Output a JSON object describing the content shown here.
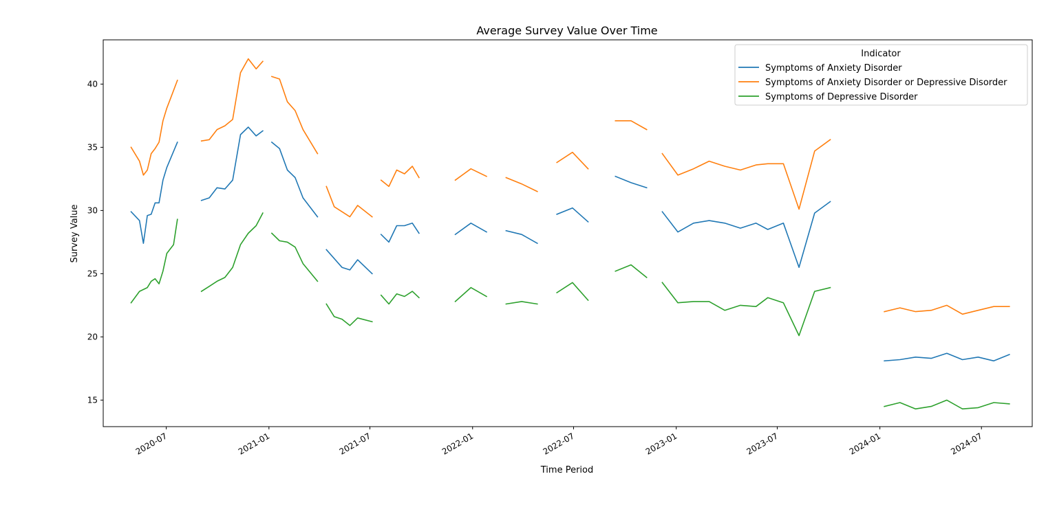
{
  "chart_data": {
    "type": "line",
    "title": "Average Survey Value Over Time",
    "xlabel": "Time Period",
    "ylabel": "Survey Value",
    "ylim": [
      12.9,
      43.5
    ],
    "xlim": [
      "2020-03-10",
      "2024-09-30"
    ],
    "y_ticks": [
      15,
      20,
      25,
      30,
      35,
      40
    ],
    "x_ticks": [
      "2020-07",
      "2021-01",
      "2021-07",
      "2022-01",
      "2022-07",
      "2023-01",
      "2023-07",
      "2024-01",
      "2024-07"
    ],
    "grid": false,
    "legend": {
      "title": "Indicator",
      "placement": "top-right"
    },
    "series": [
      {
        "name": "Symptoms of Anxiety Disorder",
        "color": "#1f77b4",
        "segments": [
          {
            "x": [
              "2020-04-29",
              "2020-05-14",
              "2020-05-21",
              "2020-05-28",
              "2020-06-04",
              "2020-06-11",
              "2020-06-18",
              "2020-06-25",
              "2020-07-02",
              "2020-07-21"
            ],
            "y": [
              29.9,
              29.2,
              27.4,
              29.6,
              29.7,
              30.6,
              30.6,
              32.4,
              33.4,
              35.4
            ]
          },
          {
            "x": [
              "2020-09-02",
              "2020-09-16",
              "2020-09-30",
              "2020-10-14",
              "2020-10-28",
              "2020-11-11",
              "2020-11-25",
              "2020-12-09",
              "2020-12-21"
            ],
            "y": [
              30.8,
              31.0,
              31.8,
              31.7,
              32.4,
              36.0,
              36.6,
              35.9,
              36.3
            ]
          },
          {
            "x": [
              "2021-01-06",
              "2021-01-20",
              "2021-02-03",
              "2021-02-17",
              "2021-03-03",
              "2021-03-29"
            ],
            "y": [
              35.4,
              34.9,
              33.2,
              32.6,
              31.0,
              29.5
            ]
          },
          {
            "x": [
              "2021-04-14",
              "2021-05-12",
              "2021-05-26",
              "2021-06-09",
              "2021-07-05"
            ],
            "y": [
              26.9,
              25.5,
              25.3,
              26.1,
              25.0
            ]
          },
          {
            "x": [
              "2021-07-21",
              "2021-08-04",
              "2021-08-18",
              "2021-09-01",
              "2021-09-15",
              "2021-09-27"
            ],
            "y": [
              28.1,
              27.5,
              28.8,
              28.8,
              29.0,
              28.2
            ]
          },
          {
            "x": [
              "2021-12-01",
              "2021-12-29",
              "2022-01-26"
            ],
            "y": [
              28.1,
              29.0,
              28.3
            ]
          },
          {
            "x": [
              "2022-03-02",
              "2022-03-30",
              "2022-04-27"
            ],
            "y": [
              28.4,
              28.1,
              27.4
            ]
          },
          {
            "x": [
              "2022-06-01",
              "2022-06-29",
              "2022-07-27"
            ],
            "y": [
              29.7,
              30.2,
              29.1
            ]
          },
          {
            "x": [
              "2022-09-14",
              "2022-10-12",
              "2022-11-09"
            ],
            "y": [
              32.7,
              32.2,
              31.8
            ]
          },
          {
            "x": [
              "2022-12-07",
              "2023-01-04",
              "2023-02-01",
              "2023-03-01",
              "2023-03-29",
              "2023-04-26",
              "2023-05-24",
              "2023-06-14",
              "2023-07-12",
              "2023-08-09",
              "2023-09-06",
              "2023-10-04"
            ],
            "y": [
              29.9,
              28.3,
              29.0,
              29.2,
              29.0,
              28.6,
              29.0,
              28.5,
              29.0,
              25.5,
              29.8,
              30.7
            ]
          },
          {
            "x": [
              "2024-01-09",
              "2024-02-06",
              "2024-03-05",
              "2024-04-02",
              "2024-04-30",
              "2024-05-28",
              "2024-06-25",
              "2024-07-23",
              "2024-08-20"
            ],
            "y": [
              18.1,
              18.2,
              18.4,
              18.3,
              18.7,
              18.2,
              18.4,
              18.1,
              18.6
            ]
          }
        ]
      },
      {
        "name": "Symptoms of Anxiety Disorder or Depressive Disorder",
        "color": "#ff7f0e",
        "segments": [
          {
            "x": [
              "2020-04-29",
              "2020-05-14",
              "2020-05-21",
              "2020-05-28",
              "2020-06-04",
              "2020-06-11",
              "2020-06-18",
              "2020-06-25",
              "2020-07-02",
              "2020-07-09",
              "2020-07-21"
            ],
            "y": [
              35.0,
              33.9,
              32.8,
              33.2,
              34.5,
              34.9,
              35.4,
              37.1,
              38.1,
              38.9,
              40.3
            ]
          },
          {
            "x": [
              "2020-09-02",
              "2020-09-16",
              "2020-09-30",
              "2020-10-14",
              "2020-10-28",
              "2020-11-11",
              "2020-11-25",
              "2020-12-09",
              "2020-12-21"
            ],
            "y": [
              35.5,
              35.6,
              36.4,
              36.7,
              37.2,
              40.9,
              42.0,
              41.2,
              41.8
            ]
          },
          {
            "x": [
              "2021-01-06",
              "2021-01-20",
              "2021-02-03",
              "2021-02-17",
              "2021-03-03",
              "2021-03-29"
            ],
            "y": [
              40.6,
              40.4,
              38.6,
              37.9,
              36.4,
              34.5
            ]
          },
          {
            "x": [
              "2021-04-14",
              "2021-04-28",
              "2021-05-12",
              "2021-05-26",
              "2021-06-09",
              "2021-07-05"
            ],
            "y": [
              31.9,
              30.3,
              29.9,
              29.5,
              30.4,
              29.5
            ]
          },
          {
            "x": [
              "2021-07-21",
              "2021-08-04",
              "2021-08-18",
              "2021-09-01",
              "2021-09-15",
              "2021-09-27"
            ],
            "y": [
              32.4,
              31.9,
              33.2,
              32.9,
              33.5,
              32.6
            ]
          },
          {
            "x": [
              "2021-12-01",
              "2021-12-29",
              "2022-01-26"
            ],
            "y": [
              32.4,
              33.3,
              32.7
            ]
          },
          {
            "x": [
              "2022-03-02",
              "2022-03-30",
              "2022-04-27"
            ],
            "y": [
              32.6,
              32.1,
              31.5
            ]
          },
          {
            "x": [
              "2022-06-01",
              "2022-06-29",
              "2022-07-27"
            ],
            "y": [
              33.8,
              34.6,
              33.3
            ]
          },
          {
            "x": [
              "2022-09-14",
              "2022-10-12",
              "2022-11-09"
            ],
            "y": [
              37.1,
              37.1,
              36.4
            ]
          },
          {
            "x": [
              "2022-12-07",
              "2023-01-04",
              "2023-02-01",
              "2023-03-01",
              "2023-03-29",
              "2023-04-26",
              "2023-05-24",
              "2023-06-14",
              "2023-07-12",
              "2023-08-09",
              "2023-09-06",
              "2023-10-04"
            ],
            "y": [
              34.5,
              32.8,
              33.3,
              33.9,
              33.5,
              33.2,
              33.6,
              33.7,
              33.7,
              30.1,
              34.7,
              35.6
            ]
          },
          {
            "x": [
              "2024-01-09",
              "2024-02-06",
              "2024-03-05",
              "2024-04-02",
              "2024-04-30",
              "2024-05-28",
              "2024-06-25",
              "2024-07-23",
              "2024-08-20"
            ],
            "y": [
              22.0,
              22.3,
              22.0,
              22.1,
              22.5,
              21.8,
              22.1,
              22.4,
              22.4
            ]
          }
        ]
      },
      {
        "name": "Symptoms of Depressive Disorder",
        "color": "#2ca02c",
        "segments": [
          {
            "x": [
              "2020-04-29",
              "2020-05-14",
              "2020-05-28",
              "2020-06-04",
              "2020-06-11",
              "2020-06-18",
              "2020-06-25",
              "2020-07-02",
              "2020-07-14",
              "2020-07-21"
            ],
            "y": [
              22.7,
              23.6,
              23.9,
              24.4,
              24.6,
              24.2,
              25.2,
              26.6,
              27.3,
              29.3
            ]
          },
          {
            "x": [
              "2020-09-02",
              "2020-09-16",
              "2020-09-30",
              "2020-10-14",
              "2020-10-28",
              "2020-11-11",
              "2020-11-25",
              "2020-12-09",
              "2020-12-21"
            ],
            "y": [
              23.6,
              24.0,
              24.4,
              24.7,
              25.5,
              27.3,
              28.2,
              28.8,
              29.8
            ]
          },
          {
            "x": [
              "2021-01-06",
              "2021-01-20",
              "2021-02-03",
              "2021-02-17",
              "2021-03-03",
              "2021-03-29"
            ],
            "y": [
              28.2,
              27.6,
              27.5,
              27.1,
              25.8,
              24.4
            ]
          },
          {
            "x": [
              "2021-04-14",
              "2021-04-28",
              "2021-05-12",
              "2021-05-26",
              "2021-06-09",
              "2021-07-05"
            ],
            "y": [
              22.6,
              21.6,
              21.4,
              20.9,
              21.5,
              21.2
            ]
          },
          {
            "x": [
              "2021-07-21",
              "2021-08-04",
              "2021-08-18",
              "2021-09-01",
              "2021-09-15",
              "2021-09-27"
            ],
            "y": [
              23.3,
              22.6,
              23.4,
              23.2,
              23.6,
              23.1
            ]
          },
          {
            "x": [
              "2021-12-01",
              "2021-12-29",
              "2022-01-26"
            ],
            "y": [
              22.8,
              23.9,
              23.2
            ]
          },
          {
            "x": [
              "2022-03-02",
              "2022-03-30",
              "2022-04-27"
            ],
            "y": [
              22.6,
              22.8,
              22.6
            ]
          },
          {
            "x": [
              "2022-06-01",
              "2022-06-29",
              "2022-07-27"
            ],
            "y": [
              23.5,
              24.3,
              22.9
            ]
          },
          {
            "x": [
              "2022-09-14",
              "2022-10-12",
              "2022-11-09"
            ],
            "y": [
              25.2,
              25.7,
              24.7
            ]
          },
          {
            "x": [
              "2022-12-07",
              "2023-01-04",
              "2023-02-01",
              "2023-03-01",
              "2023-03-29",
              "2023-04-26",
              "2023-05-24",
              "2023-06-14",
              "2023-07-12",
              "2023-08-09",
              "2023-09-06",
              "2023-10-04"
            ],
            "y": [
              24.3,
              22.7,
              22.8,
              22.8,
              22.1,
              22.5,
              22.4,
              23.1,
              22.7,
              20.1,
              23.6,
              23.9
            ]
          },
          {
            "x": [
              "2024-01-09",
              "2024-02-06",
              "2024-03-05",
              "2024-04-02",
              "2024-04-30",
              "2024-05-28",
              "2024-06-25",
              "2024-07-23",
              "2024-08-20"
            ],
            "y": [
              14.5,
              14.8,
              14.3,
              14.5,
              15.0,
              14.3,
              14.4,
              14.8,
              14.7
            ]
          }
        ]
      }
    ]
  }
}
